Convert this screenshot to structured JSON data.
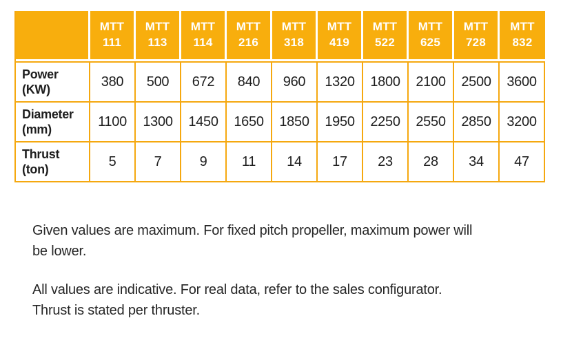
{
  "colors": {
    "header_bg": "#F8AE0D",
    "header_text": "#FFFFFF",
    "cell_border": "#F5A80F",
    "cell_bg": "#FFFFFF",
    "separator": "#FFFFFF",
    "body_text": "#1E1E1E",
    "note_text": "#262626",
    "page_bg": "#FFFFFF"
  },
  "table": {
    "corner": "",
    "columns": [
      {
        "line1": "MTT",
        "line2": "111"
      },
      {
        "line1": "MTT",
        "line2": "113"
      },
      {
        "line1": "MTT",
        "line2": "114"
      },
      {
        "line1": "MTT",
        "line2": "216"
      },
      {
        "line1": "MTT",
        "line2": "318"
      },
      {
        "line1": "MTT",
        "line2": "419"
      },
      {
        "line1": "MTT",
        "line2": "522"
      },
      {
        "line1": "MTT",
        "line2": "625"
      },
      {
        "line1": "MTT",
        "line2": "728"
      },
      {
        "line1": "MTT",
        "line2": "832"
      }
    ],
    "rows": [
      {
        "label_line1": "Power",
        "label_line2": "(KW)",
        "values": [
          "380",
          "500",
          "672",
          "840",
          "960",
          "1320",
          "1800",
          "2100",
          "2500",
          "3600"
        ]
      },
      {
        "label_line1": "Diameter",
        "label_line2": "(mm)",
        "values": [
          "1100",
          "1300",
          "1450",
          "1650",
          "1850",
          "1950",
          "2250",
          "2550",
          "2850",
          "3200"
        ]
      },
      {
        "label_line1": "Thrust",
        "label_line2": "(ton)",
        "values": [
          "5",
          "7",
          "9",
          "11",
          "14",
          "17",
          "23",
          "28",
          "34",
          "47"
        ]
      }
    ]
  },
  "chart_data": {
    "type": "table",
    "categories": [
      "MTT 111",
      "MTT 113",
      "MTT 114",
      "MTT 216",
      "MTT 318",
      "MTT 419",
      "MTT 522",
      "MTT 625",
      "MTT 728",
      "MTT 832"
    ],
    "series": [
      {
        "name": "Power (KW)",
        "values": [
          380,
          500,
          672,
          840,
          960,
          1320,
          1800,
          2100,
          2500,
          3600
        ]
      },
      {
        "name": "Diameter (mm)",
        "values": [
          1100,
          1300,
          1450,
          1650,
          1850,
          1950,
          2250,
          2550,
          2850,
          3200
        ]
      },
      {
        "name": "Thrust (ton)",
        "values": [
          5,
          7,
          9,
          11,
          14,
          17,
          23,
          28,
          34,
          47
        ]
      }
    ]
  },
  "notes": {
    "para1_line1": "Given values are maximum. For fixed pitch propeller, maximum power will",
    "para1_line2": "be lower.",
    "para2_line1": "All values are indicative. For real data, refer to the sales configurator.",
    "para2_line2": "Thrust is stated per thruster."
  }
}
